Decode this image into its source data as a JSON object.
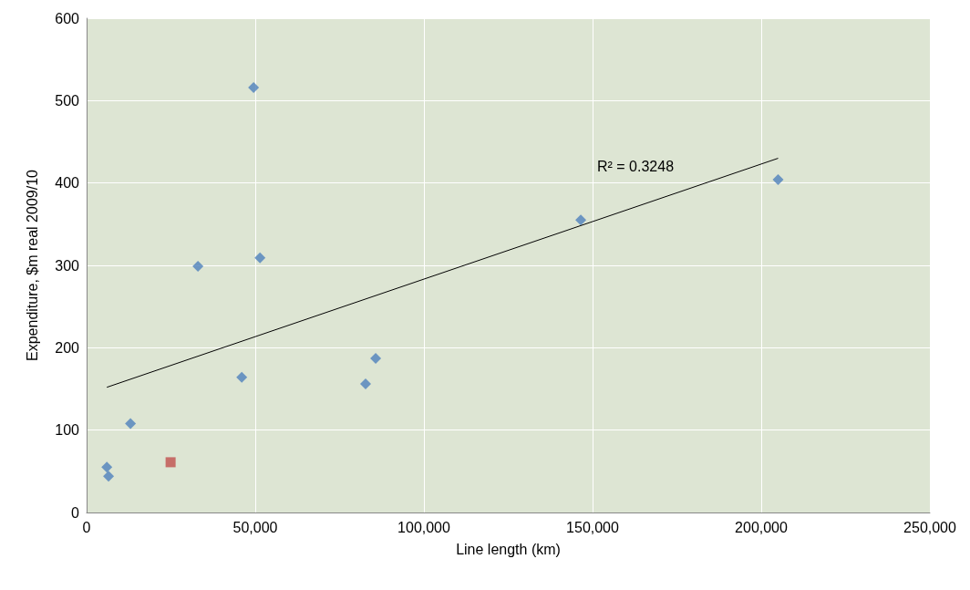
{
  "chart_data": {
    "type": "scatter",
    "xlabel": "Line length (km)",
    "ylabel": "Expenditure, $m real 2009/10",
    "xlim": [
      0,
      250000
    ],
    "xticks": [
      {
        "value": 0,
        "label": "0"
      },
      {
        "value": 50000,
        "label": "50,000"
      },
      {
        "value": 100000,
        "label": "100,000"
      },
      {
        "value": 150000,
        "label": "150,000"
      },
      {
        "value": 200000,
        "label": "200,000"
      },
      {
        "value": 250000,
        "label": "250,000"
      }
    ],
    "ylim": [
      0,
      600
    ],
    "yticks": [
      0,
      100,
      200,
      300,
      400,
      500,
      600
    ],
    "grid": true,
    "marker": "diamond",
    "series": [
      {
        "color": "#4f81bd",
        "x": [
          6000,
          6500,
          13000,
          33000,
          46000,
          49500,
          51400,
          82700,
          85700,
          146500,
          205000
        ],
        "values": [
          55,
          44,
          108,
          299,
          164,
          516,
          309,
          156,
          187,
          355,
          404
        ]
      },
      {
        "color": "#c0504d",
        "marker": "square",
        "x": [
          24900
        ],
        "values": [
          61
        ]
      },
      {
        "type": "line",
        "color": "#000000",
        "marker": "none",
        "x": [
          6000,
          205000
        ],
        "values": [
          152,
          430
        ]
      }
    ],
    "annotations": [
      "R² = 0.3248"
    ]
  }
}
